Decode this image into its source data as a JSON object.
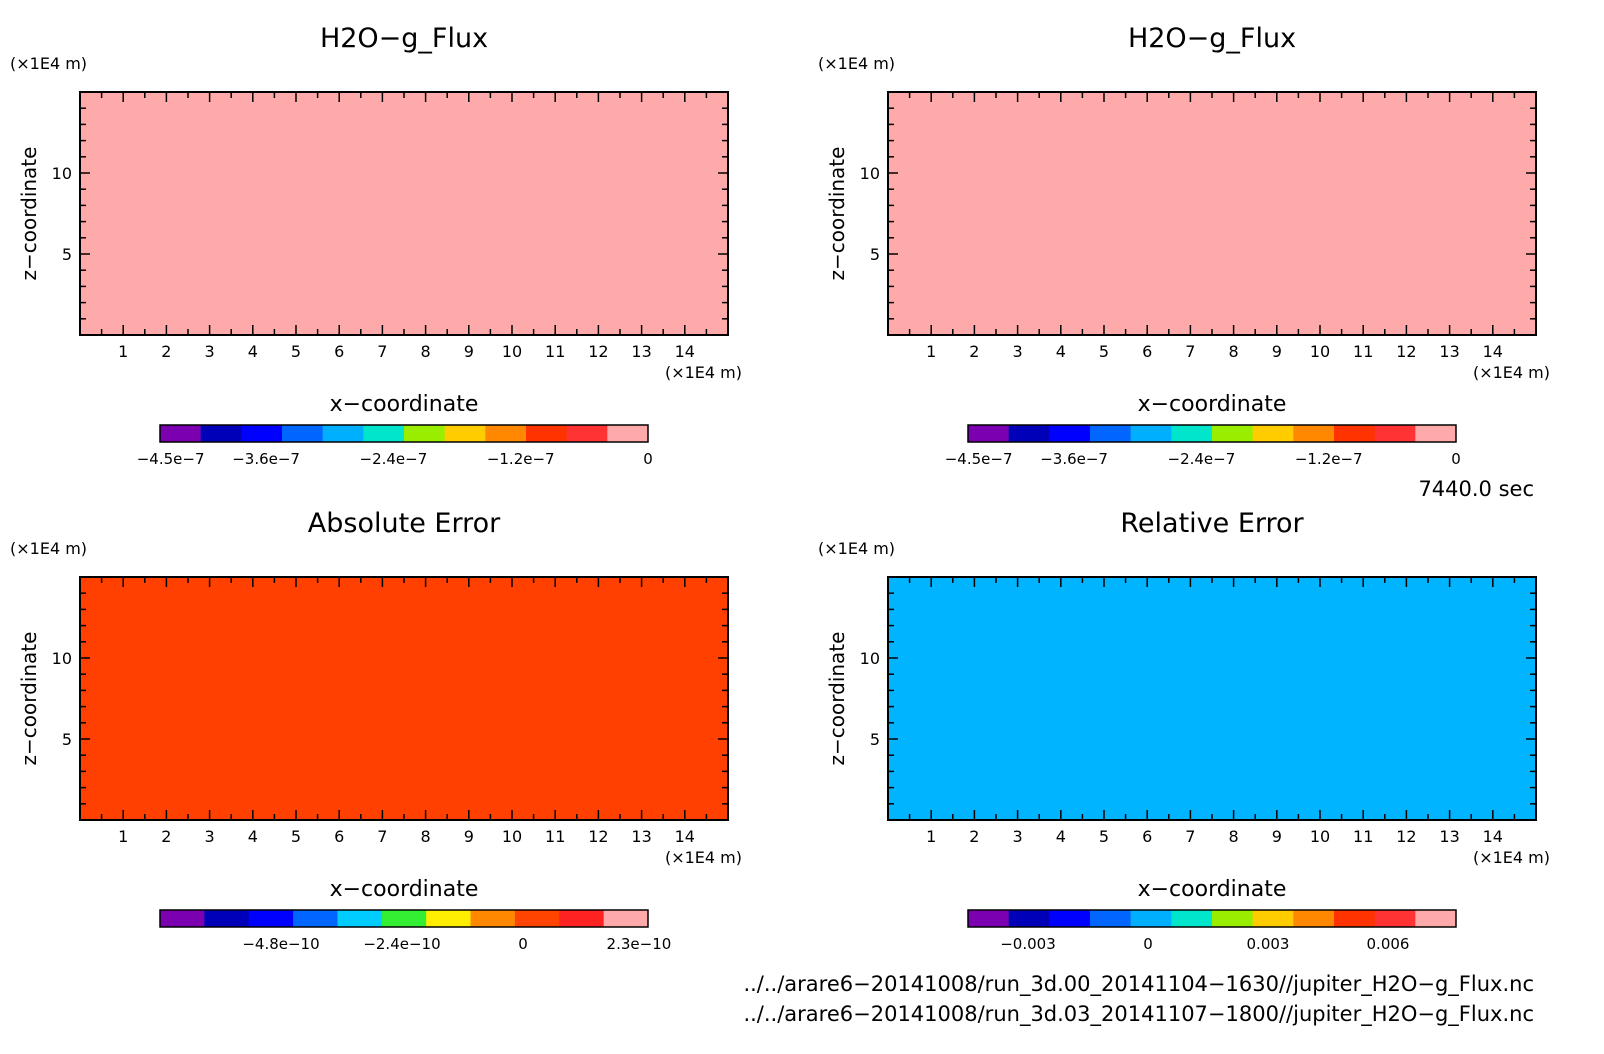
{
  "panels": [
    {
      "title": "H2O−g_Flux",
      "fill_color": "#ffaaaa",
      "x_unit": "(×1E4 m)",
      "z_unit": "(×1E4 m)",
      "x_label": "x−coordinate",
      "z_label": "z−coordinate",
      "x_ticks": [
        "1",
        "2",
        "3",
        "4",
        "5",
        "6",
        "7",
        "8",
        "9",
        "10",
        "11",
        "12",
        "13",
        "14"
      ],
      "z_ticks": [
        "5",
        "10"
      ],
      "colorbar": {
        "colors": [
          "#7a00b0",
          "#0000b8",
          "#0000ff",
          "#0066ff",
          "#00b0ff",
          "#00e5cc",
          "#99ee00",
          "#ffcc00",
          "#ff8800",
          "#ff3300",
          "#ff3333",
          "#ffaaaa"
        ],
        "labels": [
          "−4.5e−7",
          "−3.6e−7",
          "−2.4e−7",
          "−1.2e−7",
          "0"
        ],
        "label_values": [
          -4.5e-07,
          -3.6e-07,
          -2.4e-07,
          -1.2e-07,
          0
        ],
        "range": [
          -4.6e-07,
          0
        ]
      }
    },
    {
      "title": "H2O−g_Flux",
      "fill_color": "#ffaaaa",
      "x_unit": "(×1E4 m)",
      "z_unit": "(×1E4 m)",
      "x_label": "x−coordinate",
      "z_label": "z−coordinate",
      "x_ticks": [
        "1",
        "2",
        "3",
        "4",
        "5",
        "6",
        "7",
        "8",
        "9",
        "10",
        "11",
        "12",
        "13",
        "14"
      ],
      "z_ticks": [
        "5",
        "10"
      ],
      "colorbar": {
        "colors": [
          "#7a00b0",
          "#0000b8",
          "#0000ff",
          "#0066ff",
          "#00b0ff",
          "#00e5cc",
          "#99ee00",
          "#ffcc00",
          "#ff8800",
          "#ff3300",
          "#ff3333",
          "#ffaaaa"
        ],
        "labels": [
          "−4.5e−7",
          "−3.6e−7",
          "−2.4e−7",
          "−1.2e−7",
          "0"
        ],
        "label_values": [
          -4.5e-07,
          -3.6e-07,
          -2.4e-07,
          -1.2e-07,
          0
        ],
        "range": [
          -4.6e-07,
          0
        ]
      }
    },
    {
      "title": "Absolute Error",
      "fill_color": "#ff4000",
      "x_unit": "(×1E4 m)",
      "z_unit": "(×1E4 m)",
      "x_label": "x−coordinate",
      "z_label": "z−coordinate",
      "x_ticks": [
        "1",
        "2",
        "3",
        "4",
        "5",
        "6",
        "7",
        "8",
        "9",
        "10",
        "11",
        "12",
        "13",
        "14"
      ],
      "z_ticks": [
        "5",
        "10"
      ],
      "colorbar": {
        "colors": [
          "#7a00b0",
          "#0000b8",
          "#0000ff",
          "#0066ff",
          "#00ccff",
          "#33ee33",
          "#ffee00",
          "#ff8800",
          "#ff4400",
          "#ff2222",
          "#ffaaaa"
        ],
        "labels": [
          "−4.8e−10",
          "−2.4e−10",
          "0",
          "2.3e−10"
        ],
        "label_values": [
          -4.8e-10,
          -2.4e-10,
          0,
          2.3e-10
        ],
        "range": [
          -7.2e-10,
          2.48e-10
        ]
      }
    },
    {
      "title": "Relative Error",
      "fill_color": "#00b4ff",
      "x_unit": "(×1E4 m)",
      "z_unit": "(×1E4 m)",
      "x_label": "x−coordinate",
      "z_label": "z−coordinate",
      "x_ticks": [
        "1",
        "2",
        "3",
        "4",
        "5",
        "6",
        "7",
        "8",
        "9",
        "10",
        "11",
        "12",
        "13",
        "14"
      ],
      "z_ticks": [
        "5",
        "10"
      ],
      "colorbar": {
        "colors": [
          "#7a00b0",
          "#0000b8",
          "#0000ff",
          "#0066ff",
          "#00b0ff",
          "#00e5cc",
          "#99ee00",
          "#ffcc00",
          "#ff8800",
          "#ff3300",
          "#ff3333",
          "#ffaaaa"
        ],
        "labels": [
          "−0.003",
          "0",
          "0.003",
          "0.006"
        ],
        "label_values": [
          -0.003,
          0,
          0.003,
          0.006
        ],
        "range": [
          -0.0045,
          0.0077
        ]
      }
    }
  ],
  "time_label": "7440.0 sec",
  "files": [
    "../../arare6−20141008/run_3d.00_20141104−1630//jupiter_H2O−g_Flux.nc",
    "../../arare6−20141008/run_3d.03_20141107−1800//jupiter_H2O−g_Flux.nc"
  ],
  "chart_data": [
    {
      "type": "heatmap",
      "title": "H2O−g_Flux",
      "xlabel": "x−coordinate (×1E4 m)",
      "ylabel": "z−coordinate (×1E4 m)",
      "xlim": [
        0,
        15
      ],
      "ylim": [
        0,
        15
      ],
      "values": "uniform ≈ 0 (top colour bin)",
      "colorbar_ticks": [
        -4.5e-07,
        -3.6e-07,
        -2.4e-07,
        -1.2e-07,
        0
      ]
    },
    {
      "type": "heatmap",
      "title": "H2O−g_Flux",
      "xlabel": "x−coordinate (×1E4 m)",
      "ylabel": "z−coordinate (×1E4 m)",
      "xlim": [
        0,
        15
      ],
      "ylim": [
        0,
        15
      ],
      "values": "uniform ≈ 0 (top colour bin)",
      "colorbar_ticks": [
        -4.5e-07,
        -3.6e-07,
        -2.4e-07,
        -1.2e-07,
        0
      ]
    },
    {
      "type": "heatmap",
      "title": "Absolute Error",
      "xlabel": "x−coordinate (×1E4 m)",
      "ylabel": "z−coordinate (×1E4 m)",
      "xlim": [
        0,
        15
      ],
      "ylim": [
        0,
        15
      ],
      "values": "uniform ≈ 0 (bin just above 0)",
      "colorbar_ticks": [
        -4.8e-10,
        -2.4e-10,
        0,
        2.3e-10
      ]
    },
    {
      "type": "heatmap",
      "title": "Relative Error",
      "xlabel": "x−coordinate (×1E4 m)",
      "ylabel": "z−coordinate (×1E4 m)",
      "xlim": [
        0,
        15
      ],
      "ylim": [
        0,
        15
      ],
      "values": "uniform ≈ 0 (bin around 0)",
      "colorbar_ticks": [
        -0.003,
        0,
        0.003,
        0.006
      ]
    }
  ]
}
